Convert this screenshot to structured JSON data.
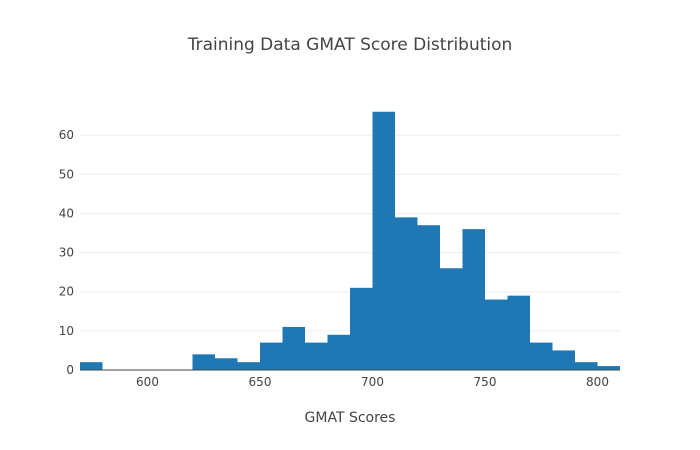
{
  "chart_data": {
    "type": "bar",
    "title": "Training Data GMAT Score Distribution",
    "xlabel": "GMAT Scores",
    "ylabel": "",
    "bin_width": 10,
    "bin_starts": [
      570,
      580,
      590,
      600,
      610,
      620,
      630,
      640,
      650,
      660,
      670,
      680,
      690,
      700,
      710,
      720,
      730,
      740,
      750,
      760,
      770,
      780,
      790,
      800
    ],
    "values": [
      2,
      0,
      0,
      0,
      0,
      4,
      3,
      2,
      7,
      11,
      7,
      9,
      21,
      66,
      39,
      37,
      26,
      36,
      18,
      19,
      7,
      5,
      2,
      1
    ],
    "xlim": [
      570,
      810
    ],
    "ylim": [
      0,
      69
    ],
    "x_ticks": [
      600,
      650,
      700,
      750,
      800
    ],
    "y_ticks": [
      0,
      10,
      20,
      30,
      40,
      50,
      60
    ],
    "grid": "horizontal",
    "bar_color": "#1f77b4",
    "grid_color": "#eeeeee",
    "legend": "none"
  }
}
